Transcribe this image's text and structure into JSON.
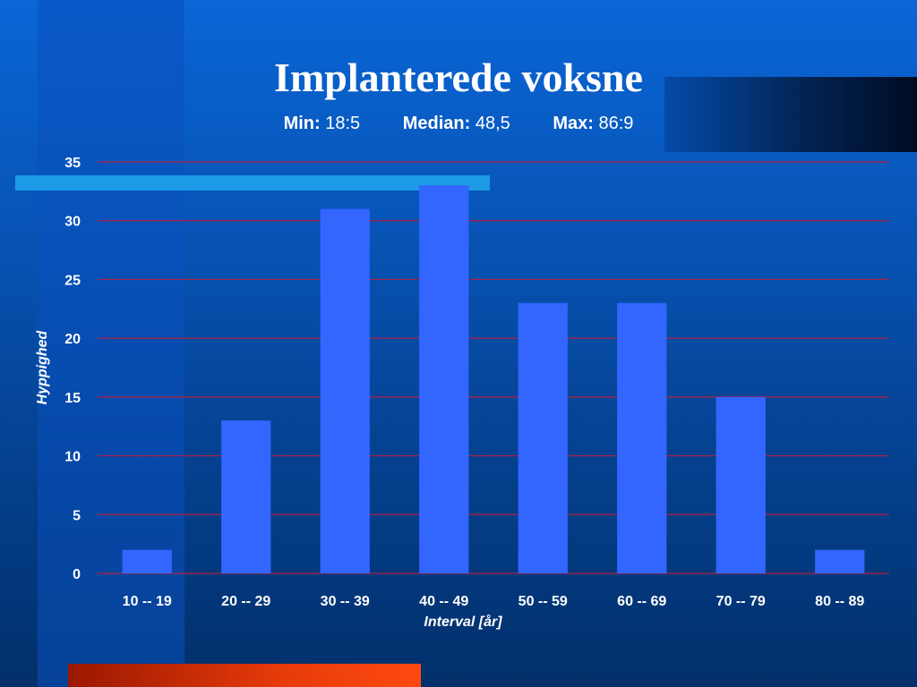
{
  "title": "Implanterede voksne",
  "stats": [
    {
      "label": "Min:",
      "value": "18:5"
    },
    {
      "label": "Median:",
      "value": "48,5"
    },
    {
      "label": "Max:",
      "value": "86:9"
    }
  ],
  "colors": {
    "bar": "#3366ff",
    "gridline": "#b02040",
    "text": "#ffffff"
  },
  "chart_data": {
    "type": "bar",
    "categories": [
      "10 -- 19",
      "20 -- 29",
      "30 -- 39",
      "40 -- 49",
      "50 -- 59",
      "60 -- 69",
      "70 -- 79",
      "80 -- 89"
    ],
    "values": [
      2,
      13,
      31,
      33,
      23,
      23,
      15,
      2
    ],
    "xlabel": "Interval [år]",
    "ylabel": "Hyppighed",
    "ylim": [
      0,
      35
    ],
    "yticks": [
      "0",
      "5",
      "10",
      "15",
      "20",
      "25",
      "30",
      "35"
    ],
    "grid": true
  }
}
